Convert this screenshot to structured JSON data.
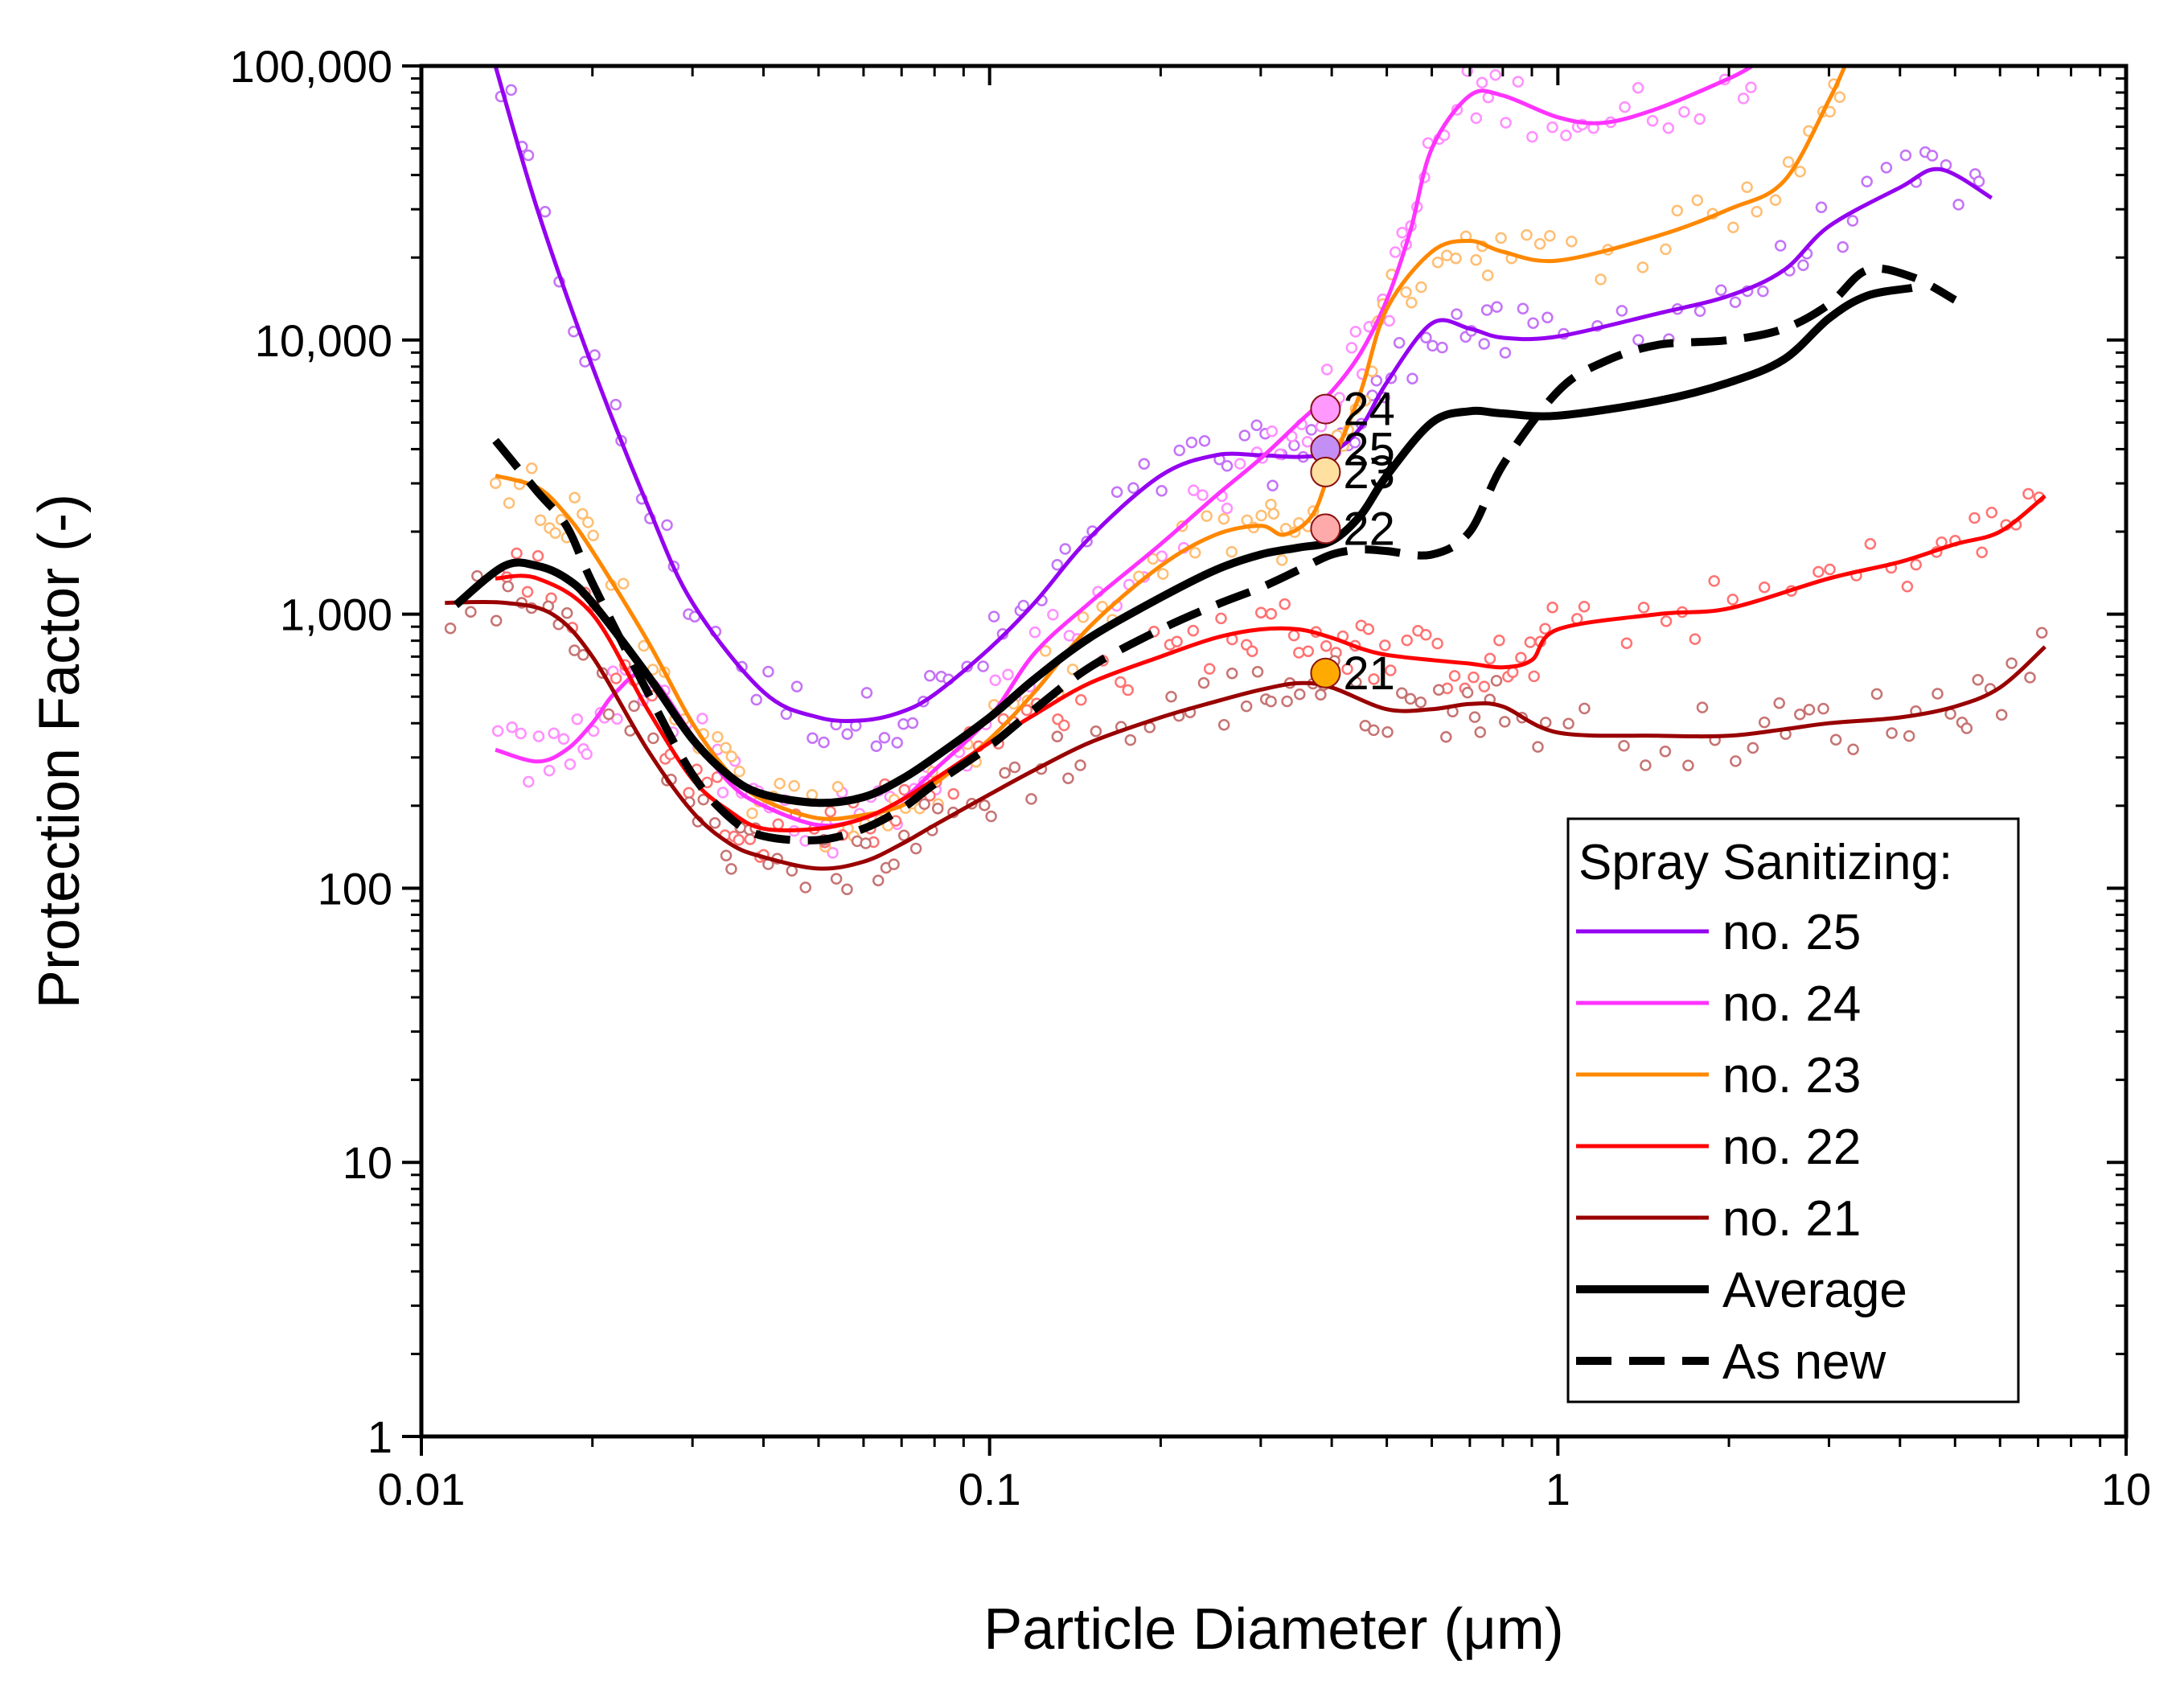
{
  "chart_data": {
    "type": "line",
    "title": "",
    "xlabel": "Particle Diameter (μm)",
    "ylabel": "Protection Factor (-)",
    "xscale": "log",
    "yscale": "log",
    "xlim": [
      0.01,
      10
    ],
    "ylim": [
      1,
      100000
    ],
    "x_ticks": [
      {
        "value": 0.01,
        "label": "0.01"
      },
      {
        "value": 0.1,
        "label": "0.1"
      },
      {
        "value": 1,
        "label": "1"
      },
      {
        "value": 10,
        "label": "10"
      }
    ],
    "y_ticks": [
      {
        "value": 1,
        "label": "1"
      },
      {
        "value": 10,
        "label": "10"
      },
      {
        "value": 100,
        "label": "100"
      },
      {
        "value": 1000,
        "label": "1,000"
      },
      {
        "value": 10000,
        "label": "10,000"
      },
      {
        "value": 100000,
        "label": "100,000"
      }
    ],
    "legend_title": "Spray Sanitizing:",
    "legend_position": "lower-right",
    "series": [
      {
        "name": "no. 25",
        "color": "#9400f0",
        "dash": false,
        "width": 5,
        "x": [
          0.0135,
          0.016,
          0.02,
          0.025,
          0.03,
          0.04,
          0.05,
          0.06,
          0.07,
          0.08,
          0.1,
          0.12,
          0.15,
          0.2,
          0.25,
          0.3,
          0.35,
          0.4,
          0.45,
          0.5,
          0.6,
          0.7,
          0.8,
          1.0,
          1.5,
          2.0,
          2.5,
          3.0,
          4.0,
          4.7,
          5.8
        ],
        "y": [
          100000,
          30000,
          8000,
          2500,
          1100,
          520,
          420,
          410,
          440,
          510,
          750,
          1100,
          1900,
          3200,
          3800,
          3800,
          3750,
          3900,
          4800,
          7000,
          11500,
          11000,
          10200,
          10300,
          12500,
          14500,
          18000,
          26000,
          36000,
          42000,
          33000
        ]
      },
      {
        "name": "no. 24",
        "color": "#ff33ff",
        "dash": false,
        "width": 5,
        "x": [
          0.0135,
          0.016,
          0.018,
          0.02,
          0.022,
          0.025,
          0.03,
          0.035,
          0.04,
          0.05,
          0.06,
          0.07,
          0.08,
          0.1,
          0.12,
          0.15,
          0.2,
          0.25,
          0.3,
          0.35,
          0.4,
          0.45,
          0.5,
          0.55,
          0.6,
          0.7,
          0.8,
          1.0,
          1.2,
          1.5,
          2.0,
          2.2
        ],
        "y": [
          320,
          290,
          320,
          400,
          520,
          600,
          360,
          240,
          200,
          170,
          180,
          210,
          270,
          420,
          720,
          1100,
          1800,
          2700,
          3700,
          5000,
          6500,
          9000,
          14000,
          25000,
          50000,
          78000,
          78000,
          65000,
          62000,
          70000,
          90000,
          100000
        ]
      },
      {
        "name": "no. 23",
        "color": "#ff8800",
        "dash": false,
        "width": 5,
        "x": [
          0.0135,
          0.016,
          0.018,
          0.02,
          0.025,
          0.03,
          0.035,
          0.04,
          0.05,
          0.06,
          0.07,
          0.08,
          0.1,
          0.12,
          0.15,
          0.2,
          0.25,
          0.3,
          0.33,
          0.37,
          0.4,
          0.45,
          0.5,
          0.6,
          0.7,
          0.8,
          1.0,
          1.5,
          2.0,
          2.5,
          3.0,
          3.2
        ],
        "y": [
          3200,
          2900,
          2300,
          1700,
          800,
          400,
          260,
          210,
          180,
          185,
          200,
          240,
          350,
          520,
          900,
          1500,
          1950,
          2100,
          1950,
          2300,
          3500,
          6500,
          13000,
          21000,
          23000,
          21000,
          19500,
          24000,
          30000,
          38000,
          75000,
          100000
        ]
      },
      {
        "name": "no. 22",
        "color": "#ff0000",
        "dash": false,
        "width": 5,
        "x": [
          0.0135,
          0.016,
          0.02,
          0.025,
          0.03,
          0.035,
          0.04,
          0.05,
          0.06,
          0.07,
          0.08,
          0.1,
          0.12,
          0.15,
          0.2,
          0.25,
          0.3,
          0.35,
          0.4,
          0.45,
          0.5,
          0.6,
          0.7,
          0.8,
          0.9,
          1.0,
          1.5,
          2.0,
          3.0,
          4.0,
          5.0,
          6.0,
          7.2
        ],
        "y": [
          1350,
          1350,
          1000,
          450,
          250,
          190,
          165,
          165,
          180,
          210,
          250,
          340,
          430,
          560,
          700,
          820,
          880,
          880,
          820,
          750,
          710,
          680,
          660,
          640,
          680,
          880,
          1000,
          1050,
          1350,
          1550,
          1800,
          2000,
          2700
        ]
      },
      {
        "name": "no. 21",
        "color": "#990000",
        "dash": false,
        "width": 5,
        "x": [
          0.011,
          0.014,
          0.017,
          0.02,
          0.025,
          0.03,
          0.035,
          0.04,
          0.05,
          0.06,
          0.07,
          0.08,
          0.1,
          0.12,
          0.15,
          0.2,
          0.25,
          0.3,
          0.35,
          0.4,
          0.5,
          0.6,
          0.7,
          0.8,
          1.0,
          1.5,
          2.0,
          2.5,
          3.0,
          4.0,
          5.0,
          6.0,
          7.2
        ],
        "y": [
          1100,
          1100,
          1000,
          700,
          320,
          190,
          145,
          130,
          118,
          125,
          145,
          170,
          220,
          270,
          340,
          420,
          480,
          530,
          560,
          540,
          450,
          450,
          470,
          460,
          370,
          360,
          360,
          380,
          400,
          420,
          460,
          540,
          760
        ]
      },
      {
        "name": "Average",
        "color": "#000000",
        "dash": false,
        "width": 10,
        "x": [
          0.0115,
          0.014,
          0.016,
          0.018,
          0.02,
          0.025,
          0.03,
          0.035,
          0.04,
          0.05,
          0.06,
          0.07,
          0.08,
          0.1,
          0.12,
          0.15,
          0.2,
          0.25,
          0.3,
          0.35,
          0.4,
          0.45,
          0.5,
          0.6,
          0.7,
          0.8,
          1.0,
          1.5,
          2.0,
          2.5,
          3.0,
          3.5,
          4.2
        ],
        "y": [
          1080,
          1500,
          1500,
          1350,
          1100,
          600,
          350,
          255,
          220,
          205,
          215,
          250,
          300,
          420,
          580,
          820,
          1150,
          1450,
          1650,
          1750,
          1850,
          2300,
          3200,
          5000,
          5500,
          5400,
          5300,
          6000,
          7000,
          8500,
          12000,
          14500,
          15500
        ]
      },
      {
        "name": "As new",
        "color": "#000000",
        "dash": true,
        "width": 10,
        "x": [
          0.0135,
          0.016,
          0.018,
          0.02,
          0.025,
          0.03,
          0.035,
          0.04,
          0.05,
          0.06,
          0.07,
          0.08,
          0.1,
          0.12,
          0.15,
          0.2,
          0.25,
          0.3,
          0.35,
          0.4,
          0.45,
          0.5,
          0.6,
          0.7,
          0.8,
          1.0,
          1.2,
          1.5,
          2.0,
          2.5,
          3.0,
          3.5,
          4.2,
          5.0
        ],
        "y": [
          4300,
          2800,
          2100,
          1300,
          520,
          260,
          180,
          155,
          150,
          165,
          195,
          240,
          330,
          450,
          640,
          880,
          1080,
          1250,
          1450,
          1650,
          1720,
          1700,
          1650,
          2000,
          3500,
          6500,
          8300,
          9600,
          10000,
          11000,
          13500,
          18000,
          17000,
          14000
        ]
      }
    ],
    "annotations": [
      {
        "label": "24",
        "x": 0.39,
        "y": 5600,
        "color": "#ff99ff"
      },
      {
        "label": "25",
        "x": 0.39,
        "y": 4000,
        "color": "#c48ff5"
      },
      {
        "label": "23",
        "x": 0.39,
        "y": 3300,
        "color": "#ffe0a0"
      },
      {
        "label": "22",
        "x": 0.39,
        "y": 2050,
        "color": "#ffaaaa"
      },
      {
        "label": "21",
        "x": 0.39,
        "y": 610,
        "color": "#ffaa00"
      }
    ]
  }
}
